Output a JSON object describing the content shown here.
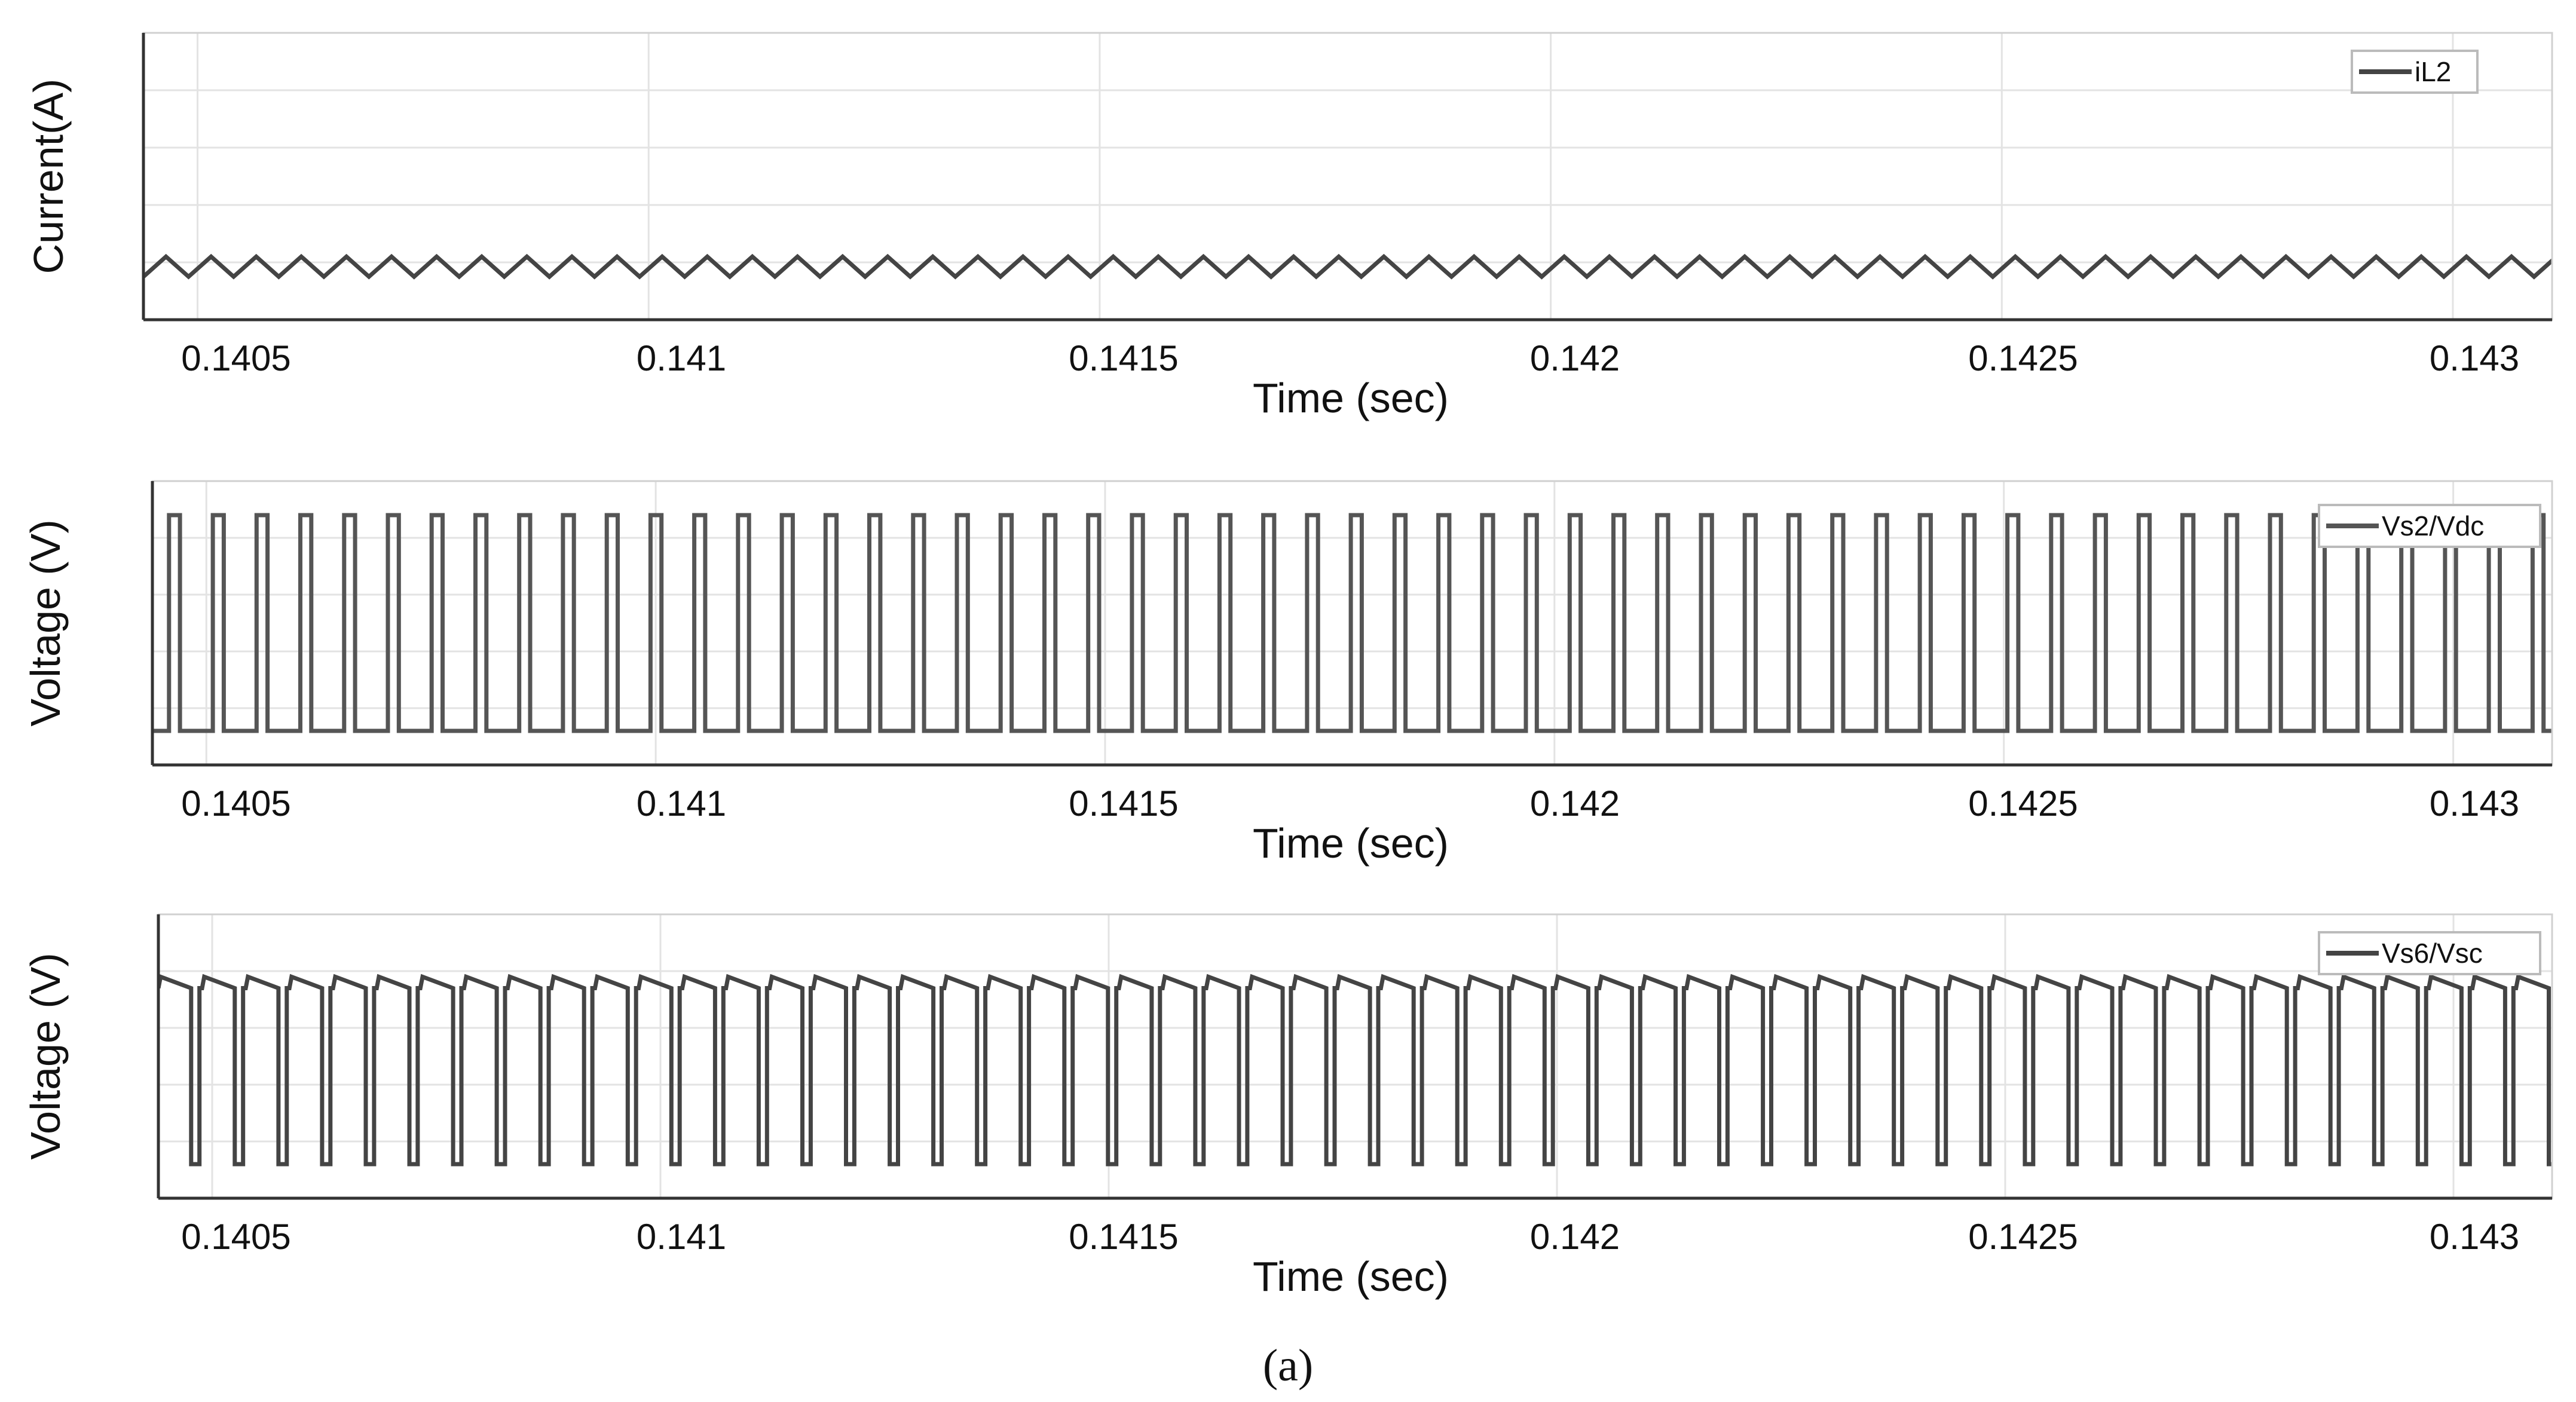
{
  "caption": "(a)",
  "chart_data": [
    {
      "type": "line",
      "title": "",
      "xlabel": "Time (sec)",
      "ylabel": "Current(A)",
      "xlim": [
        0.14044,
        0.14311
      ],
      "ylim": [
        0,
        1
      ],
      "grid": true,
      "xticks": [
        0.1405,
        0.141,
        0.1415,
        0.142,
        0.1425,
        0.143
      ],
      "xtick_labels": [
        "0.1405",
        "0.141",
        "0.1415",
        "0.142",
        "0.1425",
        "0.143"
      ],
      "legend": {
        "position": "top-right"
      },
      "series": [
        {
          "name": "iL2",
          "color": "#444444",
          "waveform": "triangle",
          "period": 5e-05,
          "low": 0.15,
          "high": 0.22
        }
      ]
    },
    {
      "type": "line",
      "title": "",
      "xlabel": "Time (sec)",
      "ylabel": "Voltage (V)",
      "xlim": [
        0.14044,
        0.14311
      ],
      "ylim": [
        0,
        1
      ],
      "grid": true,
      "xticks": [
        0.1405,
        0.141,
        0.1415,
        0.142,
        0.1425,
        0.143
      ],
      "xtick_labels": [
        "0.1405",
        "0.141",
        "0.1415",
        "0.142",
        "0.1425",
        "0.143"
      ],
      "legend": {
        "position": "top-right"
      },
      "series": [
        {
          "name": "Vs2/Vdc",
          "color": "#555555",
          "waveform": "pulse",
          "period": 4.87e-05,
          "low": 0.12,
          "high": 0.88,
          "duty": 0.25
        }
      ]
    },
    {
      "type": "line",
      "title": "",
      "xlabel": "Time (sec)",
      "ylabel": "Voltage (V)",
      "xlim": [
        0.14044,
        0.14311
      ],
      "ylim": [
        0,
        1
      ],
      "grid": true,
      "xticks": [
        0.1405,
        0.141,
        0.1415,
        0.142,
        0.1425,
        0.143
      ],
      "xtick_labels": [
        "0.1405",
        "0.141",
        "0.1415",
        "0.142",
        "0.1425",
        "0.143"
      ],
      "legend": {
        "position": "top-right"
      },
      "series": [
        {
          "name": "Vs6/Vsc",
          "color": "#444444",
          "waveform": "inverted-pulse",
          "period": 4.87e-05,
          "low": 0.12,
          "high": 0.78,
          "high_end": 0.74,
          "duty": 0.25
        }
      ]
    }
  ]
}
